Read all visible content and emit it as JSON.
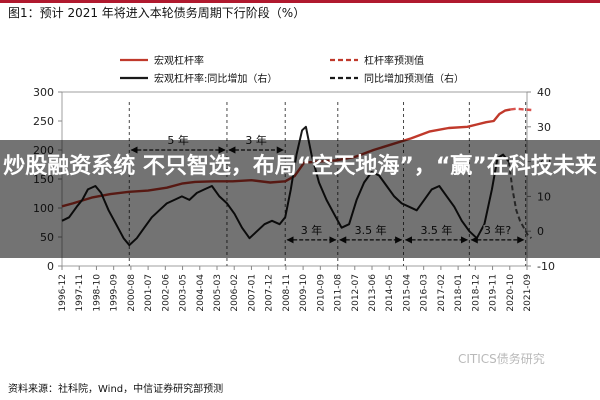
{
  "figure_title": "图1：预计 2021 年将进入本轮债务周期下行阶段（%）",
  "source_note": "资料来源：社科院，Wind，中信证券研究部预测",
  "overlay_headline": "炒股融资系统 不只智选，布局“空天地海”，“赢”在科技未来",
  "watermark": "CITICS债务研究",
  "colors": {
    "leverage": "#c0392b",
    "growth": "#1a1a1a",
    "forecast_leverage": "#d9534f",
    "forecast_growth": "#555555"
  },
  "chart_data": {
    "type": "line",
    "title": "",
    "xlabel": "",
    "ylabel_left": "",
    "ylabel_right": "",
    "x_ticks": [
      "1996-12",
      "1997-11",
      "1998-10",
      "1999-09",
      "2000-08",
      "2001-07",
      "2002-06",
      "2003-05",
      "2004-04",
      "2005-03",
      "2006-02",
      "2007-01",
      "2007-12",
      "2008-11",
      "2009-10",
      "2010-09",
      "2011-08",
      "2012-07",
      "2013-06",
      "2014-05",
      "2015-04",
      "2016-03",
      "2017-02",
      "2018-01",
      "2018-12",
      "2019-11",
      "2020-10",
      "2021-09"
    ],
    "ylim_left": [
      0,
      300
    ],
    "ylim_right": [
      -10,
      40
    ],
    "y_ticks_left": [
      0,
      50,
      100,
      150,
      200,
      250,
      300
    ],
    "y_ticks_right": [
      -10,
      0,
      10,
      20,
      30,
      40
    ],
    "legend": {
      "placement": "top",
      "items": [
        {
          "label": "宏观杠杆率",
          "style": "solid-red"
        },
        {
          "label": "杠杆率预测值",
          "style": "dashed-red"
        },
        {
          "label": "宏观杠杆率:同比增加（右）",
          "style": "solid-black"
        },
        {
          "label": "同比增加预测值（右）",
          "style": "dashed-black"
        }
      ]
    },
    "series": [
      {
        "name": "宏观杠杆率",
        "axis": "left",
        "dash": false,
        "x": [
          1996.92,
          1997.5,
          1998.5,
          1999.5,
          2000.5,
          2001.5,
          2002.5,
          2003.3,
          2004.0,
          2005.0,
          2006.0,
          2007.0,
          2008.0,
          2008.8,
          2009.3,
          2009.8,
          2010.5,
          2011.5,
          2012.5,
          2013.5,
          2014.5,
          2015.5,
          2016.5,
          2017.5,
          2018.5,
          2019.0,
          2019.5,
          2019.9,
          2020.2,
          2020.5,
          2020.8
        ],
        "y": [
          103,
          108,
          118,
          124,
          128,
          130,
          135,
          142,
          145,
          146,
          146,
          148,
          144,
          146,
          155,
          178,
          180,
          182,
          188,
          200,
          210,
          220,
          232,
          238,
          240,
          244,
          248,
          250,
          262,
          268,
          270
        ]
      },
      {
        "name": "杠杆率预测值",
        "axis": "left",
        "dash": true,
        "x": [
          2020.8,
          2021.1,
          2021.5,
          2021.9
        ],
        "y": [
          270,
          271,
          270,
          269
        ]
      },
      {
        "name": "宏观杠杆率:同比增加（右）",
        "axis": "right",
        "dash": false,
        "x": [
          1996.92,
          1997.3,
          1997.7,
          1998.0,
          1998.3,
          1998.7,
          1999.0,
          1999.4,
          1999.8,
          2000.2,
          2000.5,
          2000.9,
          2001.3,
          2001.7,
          2002.1,
          2002.5,
          2002.9,
          2003.3,
          2003.7,
          2004.1,
          2004.5,
          2004.9,
          2005.3,
          2005.7,
          2006.1,
          2006.5,
          2006.9,
          2007.3,
          2007.7,
          2008.1,
          2008.5,
          2008.8,
          2009.1,
          2009.4,
          2009.7,
          2009.9,
          2010.2,
          2010.6,
          2011.0,
          2011.4,
          2011.8,
          2012.2,
          2012.6,
          2013.0,
          2013.4,
          2013.8,
          2014.2,
          2014.6,
          2015.0,
          2015.4,
          2015.8,
          2016.2,
          2016.6,
          2017.0,
          2017.4,
          2017.8,
          2018.2,
          2018.6,
          2019.0,
          2019.4,
          2019.8,
          2020.1,
          2020.4,
          2020.7
        ],
        "y": [
          3,
          4,
          7,
          9,
          12,
          13,
          11,
          6,
          2,
          -2,
          -4,
          -2,
          1,
          4,
          6,
          8,
          9,
          10,
          9,
          11,
          12,
          13,
          10,
          8,
          5,
          1,
          -2,
          0,
          2,
          3,
          2,
          4,
          12,
          22,
          29,
          30,
          22,
          14,
          9,
          5,
          1,
          2,
          9,
          14,
          17,
          16,
          13,
          10,
          8,
          7,
          6,
          9,
          12,
          13,
          10,
          7,
          3,
          0,
          -2,
          2,
          12,
          21,
          22,
          20
        ]
      },
      {
        "name": "同比增加预测值（右）",
        "axis": "right",
        "dash": true,
        "x": [
          2020.7,
          2020.9,
          2021.1,
          2021.3,
          2021.5,
          2021.7,
          2021.9
        ],
        "y": [
          20,
          12,
          6,
          3,
          1,
          -1,
          -2
        ]
      }
    ],
    "annotations": [
      {
        "text": "5 年",
        "x_from": 2000.5,
        "x_to": 2005.7,
        "y_left": 200
      },
      {
        "text": "3 年",
        "x_from": 2005.7,
        "x_to": 2008.8,
        "y_left": 200
      },
      {
        "text": "3 年",
        "x_from": 2008.8,
        "x_to": 2011.6,
        "y_left": 45
      },
      {
        "text": "3.5 年",
        "x_from": 2011.6,
        "x_to": 2015.1,
        "y_left": 45
      },
      {
        "text": "3.5 年",
        "x_from": 2015.1,
        "x_to": 2018.6,
        "y_left": 45
      },
      {
        "text": "3 年?",
        "x_from": 2018.6,
        "x_to": 2021.6,
        "y_left": 45
      }
    ],
    "cycle_lines_x": [
      2000.5,
      2005.7,
      2008.8,
      2011.6,
      2015.1,
      2018.6,
      2021.6
    ],
    "grid": false
  }
}
